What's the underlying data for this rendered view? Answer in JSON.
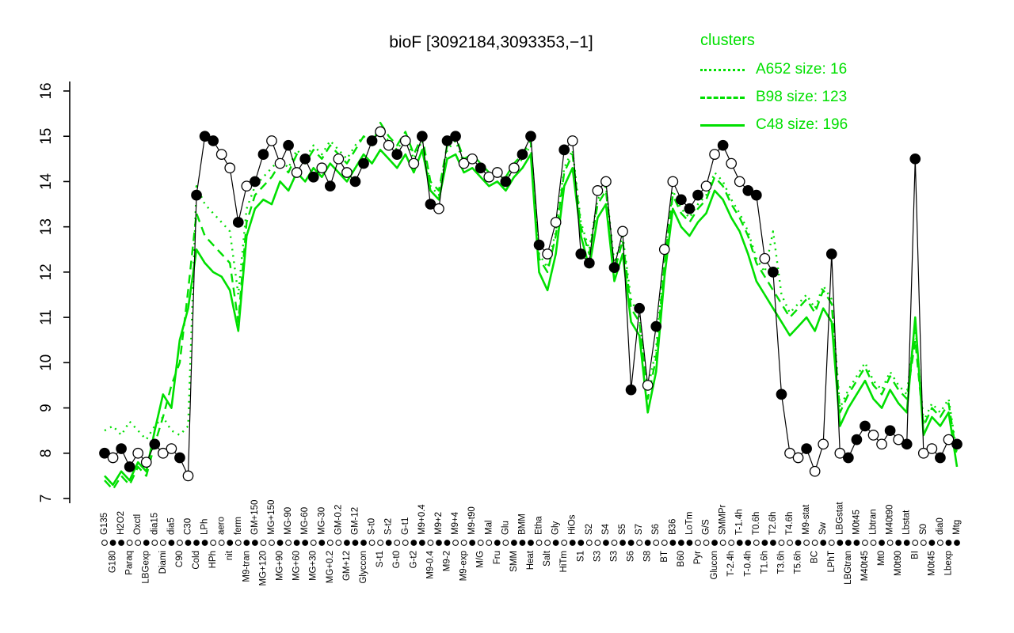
{
  "title": "bioF [3092184,3093353,−1]",
  "colors": {
    "accent_green": "#00DF00",
    "line_black": "#000000",
    "background": "#FFFFFF"
  },
  "legend": {
    "heading": "clusters",
    "entries": [
      {
        "label": "A652 size: 16",
        "style": "dotted"
      },
      {
        "label": "B98 size: 123",
        "style": "dashed"
      },
      {
        "label": "C48 size: 196",
        "style": "solid"
      }
    ]
  },
  "chart_data": {
    "type": "line",
    "title": "bioF [3092184,3093353,−1]",
    "ylabel": "",
    "xlabel": "",
    "ylim": [
      7,
      16
    ],
    "y_ticks": [
      7,
      8,
      9,
      10,
      11,
      12,
      13,
      14,
      15,
      16
    ],
    "grid": false,
    "legend_position": "top-right",
    "marker_pattern": "foffoofoofofffoofoffoofoffofoofffoofoof",
    "categories": [
      "G135",
      "G180",
      "H2O2",
      "Paraq",
      "Oxctl",
      "LBGexp",
      "dia15",
      "Diami",
      "dia5",
      "C90",
      "C30",
      "Cold",
      "LPh",
      "HPh",
      "aero",
      "nit",
      "ferm",
      "M9-tran",
      "GM+150",
      "MG+120",
      "MG+150",
      "MG+90",
      "MG-90",
      "MG+60",
      "MG-60",
      "MG+30",
      "MG-30",
      "MG+0.2",
      "GM-0.2",
      "GM+12",
      "GM-12",
      "Glyccon",
      "S-t0",
      "S-t1",
      "S-t2",
      "G-t0",
      "G-t1",
      "G-t2",
      "M9+0.4",
      "M9-0.4",
      "M9+2",
      "M9-2",
      "M9+4",
      "M9-exp",
      "M9-t90",
      "M/G",
      "Mal",
      "Fru",
      "Glu",
      "SMM",
      "BMM",
      "Heat",
      "Etha",
      "Salt",
      "Gly",
      "HiTm",
      "HiOs",
      "S1",
      "S2",
      "S3",
      "S4",
      "S3",
      "S5",
      "S6",
      "S7",
      "S8",
      "S6",
      "BT",
      "B36",
      "B60",
      "LoTm",
      "Pyr",
      "G/S",
      "Glucon",
      "SMMPr",
      "T-2.4h",
      "T-1.4h",
      "T-0.4h",
      "T0.6h",
      "T1.6h",
      "T2.6h",
      "T3.6h",
      "T4.6h",
      "T5.6h",
      "M9-stat",
      "BC",
      "Sw",
      "LPhT",
      "LBGstat",
      "LBGtran",
      "M0t45",
      "M40t45",
      "Lbtran",
      "Mt0",
      "M40t90",
      "M0t90",
      "Lbstat",
      "BI",
      "S0",
      "M0t45",
      "dia0",
      "Lbexp",
      "Mtg"
    ],
    "series": [
      {
        "name": "A652",
        "legend": "A652 size: 16",
        "color": "#00DF00",
        "style": "dotted",
        "width": 2.4,
        "markers": false,
        "values": [
          8.5,
          8.6,
          8.4,
          8.7,
          8.5,
          8.3,
          8.6,
          8.8,
          8.5,
          8.4,
          8.6,
          13.9,
          13.5,
          13.3,
          13.1,
          12.9,
          11.5,
          13.4,
          13.9,
          14.1,
          14.3,
          14.5,
          14.3,
          14.7,
          14.5,
          14.8,
          14.6,
          14.9,
          14.7,
          14.5,
          14.8,
          15.0,
          14.8,
          15.1,
          14.9,
          14.7,
          15.0,
          14.5,
          14.9,
          13.9,
          13.7,
          14.7,
          14.9,
          14.4,
          14.5,
          14.3,
          14.1,
          14.2,
          14.0,
          14.3,
          14.5,
          14.8,
          12.4,
          12.1,
          12.9,
          14.3,
          14.7,
          13.1,
          12.5,
          13.6,
          13.9,
          12.2,
          12.8,
          11.4,
          11.0,
          9.4,
          10.3,
          12.4,
          13.8,
          13.4,
          13.2,
          13.5,
          13.7,
          14.2,
          14.0,
          13.6,
          13.3,
          12.9,
          12.3,
          12.0,
          12.9,
          11.5,
          11.1,
          11.3,
          11.5,
          11.2,
          11.7,
          11.4,
          9.0,
          9.4,
          9.7,
          10.0,
          9.6,
          9.4,
          9.8,
          9.5,
          9.3,
          10.8,
          8.7,
          9.1,
          8.9,
          9.2,
          8.0
        ]
      },
      {
        "name": "B98",
        "legend": "B98 size: 123",
        "color": "#00DF00",
        "style": "dashed",
        "width": 2.4,
        "markers": false,
        "values": [
          7.4,
          7.2,
          7.5,
          7.3,
          7.7,
          7.5,
          8.2,
          8.8,
          9.5,
          10.0,
          11.6,
          13.3,
          12.8,
          12.6,
          12.4,
          12.2,
          10.9,
          13.1,
          13.7,
          13.9,
          14.1,
          14.4,
          14.2,
          14.6,
          14.4,
          14.7,
          14.5,
          14.8,
          14.6,
          14.4,
          14.7,
          15.0,
          14.8,
          15.3,
          15.0,
          14.8,
          15.1,
          14.6,
          15.0,
          14.0,
          13.8,
          14.8,
          15.0,
          14.5,
          14.6,
          14.4,
          14.2,
          14.3,
          14.1,
          14.4,
          14.6,
          14.9,
          12.3,
          12.0,
          12.8,
          14.2,
          14.6,
          13.0,
          12.4,
          13.5,
          13.8,
          12.0,
          12.7,
          11.2,
          10.9,
          9.2,
          10.1,
          12.2,
          13.7,
          13.3,
          13.1,
          13.4,
          13.6,
          14.1,
          13.9,
          13.5,
          13.2,
          12.8,
          12.2,
          11.9,
          11.6,
          11.3,
          11.0,
          11.2,
          11.4,
          11.1,
          11.6,
          11.3,
          8.9,
          9.3,
          9.6,
          9.9,
          9.5,
          9.3,
          9.7,
          9.4,
          9.2,
          10.5,
          8.6,
          9.0,
          8.8,
          9.1,
          7.9
        ]
      },
      {
        "name": "C48",
        "legend": "C48 size: 196",
        "color": "#00DF00",
        "style": "solid",
        "width": 2.6,
        "markers": false,
        "values": [
          7.5,
          7.3,
          7.6,
          7.4,
          7.8,
          7.6,
          8.5,
          9.3,
          9.0,
          10.5,
          11.2,
          12.5,
          12.2,
          12.0,
          11.9,
          11.6,
          10.7,
          12.8,
          13.4,
          13.6,
          13.5,
          14.0,
          13.8,
          14.2,
          14.0,
          14.3,
          14.1,
          14.4,
          14.2,
          14.0,
          14.3,
          14.6,
          14.4,
          14.7,
          14.5,
          14.3,
          14.6,
          14.2,
          14.7,
          13.8,
          13.6,
          14.5,
          14.6,
          14.2,
          14.3,
          14.1,
          13.9,
          14.0,
          13.8,
          14.1,
          14.3,
          14.6,
          12.0,
          11.6,
          12.4,
          13.9,
          14.3,
          12.8,
          12.1,
          13.2,
          13.5,
          11.8,
          12.4,
          10.9,
          10.6,
          8.9,
          9.8,
          11.9,
          13.4,
          13.0,
          12.8,
          13.1,
          13.3,
          13.8,
          13.6,
          13.2,
          12.9,
          12.4,
          11.8,
          11.5,
          11.2,
          10.9,
          10.6,
          10.8,
          11.0,
          10.7,
          11.2,
          10.9,
          8.6,
          9.0,
          9.3,
          9.6,
          9.2,
          9.0,
          9.4,
          9.1,
          8.9,
          11.0,
          8.4,
          8.8,
          8.6,
          8.9,
          7.7
        ]
      },
      {
        "name": "bioF",
        "legend": "bioF",
        "color": "#000000",
        "style": "solid",
        "width": 1.2,
        "markers": true,
        "values": [
          8.0,
          7.9,
          8.1,
          7.7,
          8.0,
          7.8,
          8.2,
          8.0,
          8.1,
          7.9,
          7.5,
          13.7,
          15.0,
          14.9,
          14.6,
          14.3,
          13.1,
          13.9,
          14.0,
          14.6,
          14.9,
          14.4,
          14.8,
          14.2,
          14.5,
          14.1,
          14.3,
          13.9,
          14.5,
          14.2,
          14.0,
          14.4,
          14.9,
          15.1,
          14.8,
          14.6,
          14.9,
          14.4,
          15.0,
          13.5,
          13.4,
          14.9,
          15.0,
          14.4,
          14.5,
          14.3,
          14.1,
          14.2,
          14.0,
          14.3,
          14.6,
          15.0,
          12.6,
          12.4,
          13.1,
          14.7,
          14.9,
          12.4,
          12.2,
          13.8,
          14.0,
          12.1,
          12.9,
          9.4,
          11.2,
          9.5,
          10.8,
          12.5,
          14.0,
          13.6,
          13.4,
          13.7,
          13.9,
          14.6,
          14.8,
          14.4,
          14.0,
          13.8,
          13.7,
          12.3,
          12.0,
          9.3,
          8.0,
          7.9,
          8.1,
          7.6,
          8.2,
          12.4,
          8.0,
          7.9,
          8.3,
          8.6,
          8.4,
          8.2,
          8.5,
          8.3,
          8.2,
          14.5,
          8.0,
          8.1,
          7.9,
          8.3,
          8.2
        ]
      }
    ]
  }
}
